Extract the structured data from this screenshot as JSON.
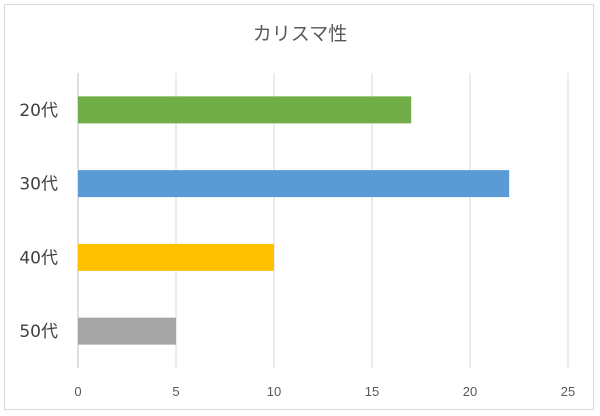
{
  "chart_data": {
    "type": "bar",
    "orientation": "horizontal",
    "title": "カリスマ性",
    "categories": [
      "20代",
      "30代",
      "40代",
      "50代"
    ],
    "values": [
      17,
      22,
      10,
      5
    ],
    "colors": [
      "#70ad47",
      "#5b9bd5",
      "#ffc000",
      "#a5a5a5"
    ],
    "xlim": [
      0,
      25
    ],
    "x_ticks": [
      0,
      5,
      10,
      15,
      20,
      25
    ],
    "xlabel": "",
    "ylabel": "",
    "grid": "vertical",
    "legend": "none"
  }
}
